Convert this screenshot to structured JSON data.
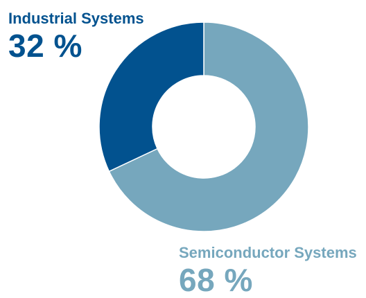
{
  "chart_data": {
    "type": "pie",
    "variant": "donut",
    "slices": [
      {
        "label": "Industrial Systems",
        "value": 32,
        "display": "32 %",
        "color": "#02528f"
      },
      {
        "label": "Semiconductor Systems",
        "value": 68,
        "display": "68 %",
        "color": "#76a7bd"
      }
    ],
    "background": "#ffffff",
    "legend": "none"
  }
}
